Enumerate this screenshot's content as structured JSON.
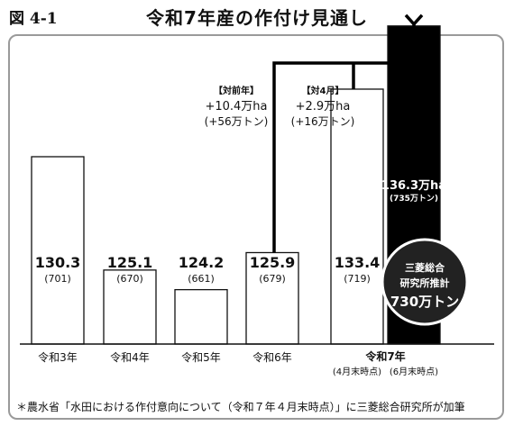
{
  "figure_label": "図 4-1",
  "title": "令和7年産の作付け見通し",
  "note": "＊農水省「水田における作付意向について（令和７年４月末時点）」に三菱総合研究所が加筆",
  "chart_data": {
    "type": "bar",
    "unit_top": "万ha",
    "unit_bottom": "万トン",
    "categories": [
      "令和3年",
      "令和4年",
      "令和5年",
      "令和6年",
      "令和7年",
      "令和7年"
    ],
    "group_label": "令和7年",
    "sub_labels": [
      "",
      "",
      "",
      "",
      "(4月末時点)",
      "(6月末時点)"
    ],
    "values": [
      130.3,
      125.1,
      124.2,
      125.9,
      133.4,
      136.3
    ],
    "bottom_values": [
      "(701)",
      "(670)",
      "(661)",
      "(679)",
      "(719)",
      "(735万トン)"
    ],
    "value_labels": [
      "130.3",
      "125.1",
      "124.2",
      "125.9",
      "133.4",
      "136.3万ha"
    ],
    "highlight_index": 5,
    "annotations": [
      {
        "tag": "【対前年】",
        "line1": "+10.4万ha",
        "line2": "(+56万トン)"
      },
      {
        "tag": "【対4月】",
        "line1": "+2.9万ha",
        "line2": "(+16万トン)"
      }
    ],
    "badge": {
      "line1": "三菱総合",
      "line2": "研究所推計",
      "line3": "730万トン"
    },
    "colors": {
      "bar": "#ffffff",
      "highlight": "#000000",
      "badge": "#222222"
    }
  }
}
